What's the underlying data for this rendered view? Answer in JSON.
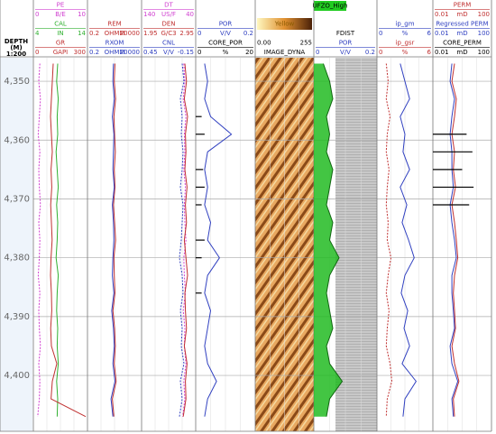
{
  "depth_track": {
    "title": "DEPTH",
    "unit": "(M)",
    "scale": "1:200",
    "ylim": [
      4346,
      4409.5
    ],
    "ticks": [
      {
        "value": 4350,
        "label": "4,350"
      },
      {
        "value": 4360,
        "label": "4,360"
      },
      {
        "value": 4370,
        "label": "4,370"
      },
      {
        "value": 4380,
        "label": "4,380"
      },
      {
        "value": 4390,
        "label": "4,390"
      },
      {
        "value": 4400,
        "label": "4,400"
      }
    ]
  },
  "depths": [
    4347,
    4350,
    4353,
    4356,
    4359,
    4362,
    4365,
    4368,
    4371,
    4374,
    4377,
    4380,
    4383,
    4386,
    4389,
    4392,
    4395,
    4398,
    4401,
    4404,
    4407
  ],
  "tracks": [
    {
      "curves": [
        {
          "name": "PE",
          "left": 0,
          "unit": "B/E",
          "right": 10,
          "color": "#d040d0",
          "dash": true,
          "values": [
            1.2,
            1.0,
            1.3,
            1.1,
            0.9,
            1.2,
            1.0,
            1.1,
            1.3,
            1.0,
            1.2,
            1.1,
            0.9,
            1.2,
            1.0,
            1.1,
            1.3,
            1.0,
            1.2,
            1.1,
            0.8
          ]
        },
        {
          "name": "CAL",
          "left": 4,
          "unit": "IN",
          "right": 14,
          "color": "#30b030",
          "values": [
            8.5,
            8.3,
            8.6,
            8.4,
            8.5,
            8.2,
            8.4,
            8.6,
            8.3,
            8.5,
            8.4,
            8.2,
            8.6,
            8.4,
            8.3,
            8.5,
            8.4,
            8.6,
            8.3,
            8.5,
            8.4
          ]
        },
        {
          "name": "GR",
          "left": 0,
          "unit": "GAPI",
          "right": 300,
          "color": "#c03030",
          "values": [
            110,
            105,
            100,
            95,
            100,
            105,
            98,
            102,
            96,
            100,
            104,
            98,
            95,
            100,
            102,
            96,
            100,
            130,
            105,
            98,
            290
          ]
        }
      ]
    },
    {
      "curves": [
        {
          "name": "REM",
          "left": 0.2,
          "unit": "OHMM",
          "right": 20000,
          "log": true,
          "color": "#c03030",
          "values": [
            70,
            60,
            80,
            55,
            65,
            75,
            60,
            70,
            50,
            65,
            80,
            55,
            60,
            70,
            45,
            65,
            75,
            60,
            90,
            40,
            55
          ]
        },
        {
          "name": "RXOM",
          "left": 0.2,
          "unit": "OHMM",
          "right": 20000,
          "log": true,
          "color": "#3040c0",
          "values": [
            50,
            45,
            60,
            40,
            55,
            50,
            45,
            60,
            40,
            50,
            55,
            45,
            40,
            55,
            35,
            50,
            60,
            45,
            70,
            30,
            45
          ]
        }
      ]
    },
    {
      "curves": [
        {
          "name": "DT",
          "left": 140,
          "unit": "US/F",
          "right": 40,
          "color": "#d040d0",
          "dash": true,
          "values": [
            62,
            60,
            63,
            58,
            61,
            60,
            62,
            59,
            61,
            60,
            58,
            62,
            61,
            59,
            63,
            60,
            61,
            58,
            62,
            60,
            64
          ]
        },
        {
          "name": "DEN",
          "left": 1.95,
          "unit": "G/C3",
          "right": 2.95,
          "color": "#c03030",
          "values": [
            2.75,
            2.78,
            2.74,
            2.8,
            2.76,
            2.77,
            2.75,
            2.79,
            2.76,
            2.78,
            2.74,
            2.77,
            2.8,
            2.75,
            2.76,
            2.78,
            2.74,
            2.79,
            2.76,
            2.77,
            2.72
          ]
        },
        {
          "name": "CNL",
          "left": 0.45,
          "unit": "V/V",
          "right": -0.15,
          "color": "#3040c0",
          "dash": true,
          "values": [
            0.0,
            -0.02,
            0.02,
            0.0,
            0.01,
            -0.01,
            0.0,
            0.02,
            -0.01,
            0.0,
            0.01,
            0.03,
            0.0,
            -0.01,
            0.02,
            0.0,
            0.01,
            -0.02,
            0.02,
            0.0,
            0.03
          ]
        }
      ]
    },
    {
      "curves": [
        {
          "name": "POR",
          "left": 0,
          "unit": "V/V",
          "right": 0.2,
          "color": "#3040c0",
          "values": [
            0.03,
            0.04,
            0.03,
            0.05,
            0.12,
            0.04,
            0.03,
            0.04,
            0.03,
            0.05,
            0.04,
            0.08,
            0.04,
            0.03,
            0.05,
            0.04,
            0.03,
            0.04,
            0.07,
            0.04,
            0.03
          ]
        },
        {
          "name": "CORE_POR",
          "left": 0,
          "unit": "%",
          "right": 20,
          "color": "#000000",
          "style": "bar",
          "values": [
            null,
            null,
            null,
            2,
            3,
            null,
            2.5,
            3,
            2,
            null,
            3,
            2,
            null,
            2,
            null,
            null,
            null,
            null,
            null,
            null,
            null
          ]
        }
      ]
    },
    {
      "image": {
        "name": "IMAGE_DYNA",
        "palette": "Yellow",
        "min": {
          "value": 0,
          "label": "0.00"
        },
        "max": 255
      },
      "curves": []
    },
    {
      "header_labels": [
        "UFZO_High",
        "FDIST"
      ],
      "curves": [
        {
          "name": "POR",
          "left": 0,
          "unit": "V/V",
          "right": 0.2,
          "color": "#3040c0",
          "fill": "#22bb22",
          "values": [
            0.03,
            0.05,
            0.06,
            0.04,
            0.05,
            0.04,
            0.06,
            0.05,
            0.04,
            0.06,
            0.05,
            0.08,
            0.05,
            0.04,
            0.05,
            0.06,
            0.04,
            0.05,
            0.09,
            0.05,
            0.04
          ]
        }
      ]
    },
    {
      "curves": [
        {
          "name": "ip_gm",
          "left": 0,
          "unit": "%",
          "right": 6,
          "color": "#3040c0",
          "values": [
            2.5,
            3,
            3.5,
            2.5,
            3,
            2.8,
            3.5,
            2.5,
            3.2,
            2.7,
            3.4,
            4,
            3,
            2.6,
            3.3,
            2.9,
            3.5,
            2.7,
            4.2,
            3,
            2.8
          ]
        },
        {
          "name": "ip_gsr",
          "left": 0,
          "unit": "%",
          "right": 6,
          "color": "#c03030",
          "dash": true,
          "values": [
            1,
            1.2,
            1,
            1.4,
            1.1,
            1,
            1.3,
            1.1,
            1,
            1.2,
            1.1,
            1.5,
            1.2,
            1,
            1.3,
            1.1,
            1,
            1.4,
            1.6,
            1.1,
            1
          ]
        }
      ]
    },
    {
      "curves": [
        {
          "name": "PERM",
          "left": 0.01,
          "unit": "mD",
          "right": 100,
          "log": true,
          "color": "#c03030",
          "values": [
            0.3,
            0.2,
            0.4,
            0.3,
            0.2,
            0.3,
            0.25,
            0.35,
            0.2,
            0.3,
            0.4,
            0.5,
            0.3,
            0.25,
            0.3,
            0.35,
            0.2,
            0.3,
            0.6,
            0.25,
            0.3
          ]
        },
        {
          "name": "Regressed PERM",
          "left": 0.01,
          "unit": "mD",
          "right": 100,
          "log": true,
          "color": "#3040c0",
          "values": [
            0.2,
            0.15,
            0.3,
            0.2,
            0.15,
            0.2,
            0.2,
            0.25,
            0.15,
            0.2,
            0.3,
            0.4,
            0.2,
            0.2,
            0.25,
            0.3,
            0.15,
            0.2,
            0.5,
            0.2,
            0.25
          ]
        },
        {
          "name": "CORE_PERM",
          "left": 0.01,
          "unit": "mD",
          "right": 100,
          "log": true,
          "color": "#000000",
          "style": "bar",
          "values": [
            null,
            null,
            null,
            null,
            2,
            5,
            1,
            6,
            3,
            null,
            null,
            null,
            null,
            null,
            null,
            null,
            null,
            null,
            null,
            null,
            null
          ]
        }
      ]
    }
  ]
}
